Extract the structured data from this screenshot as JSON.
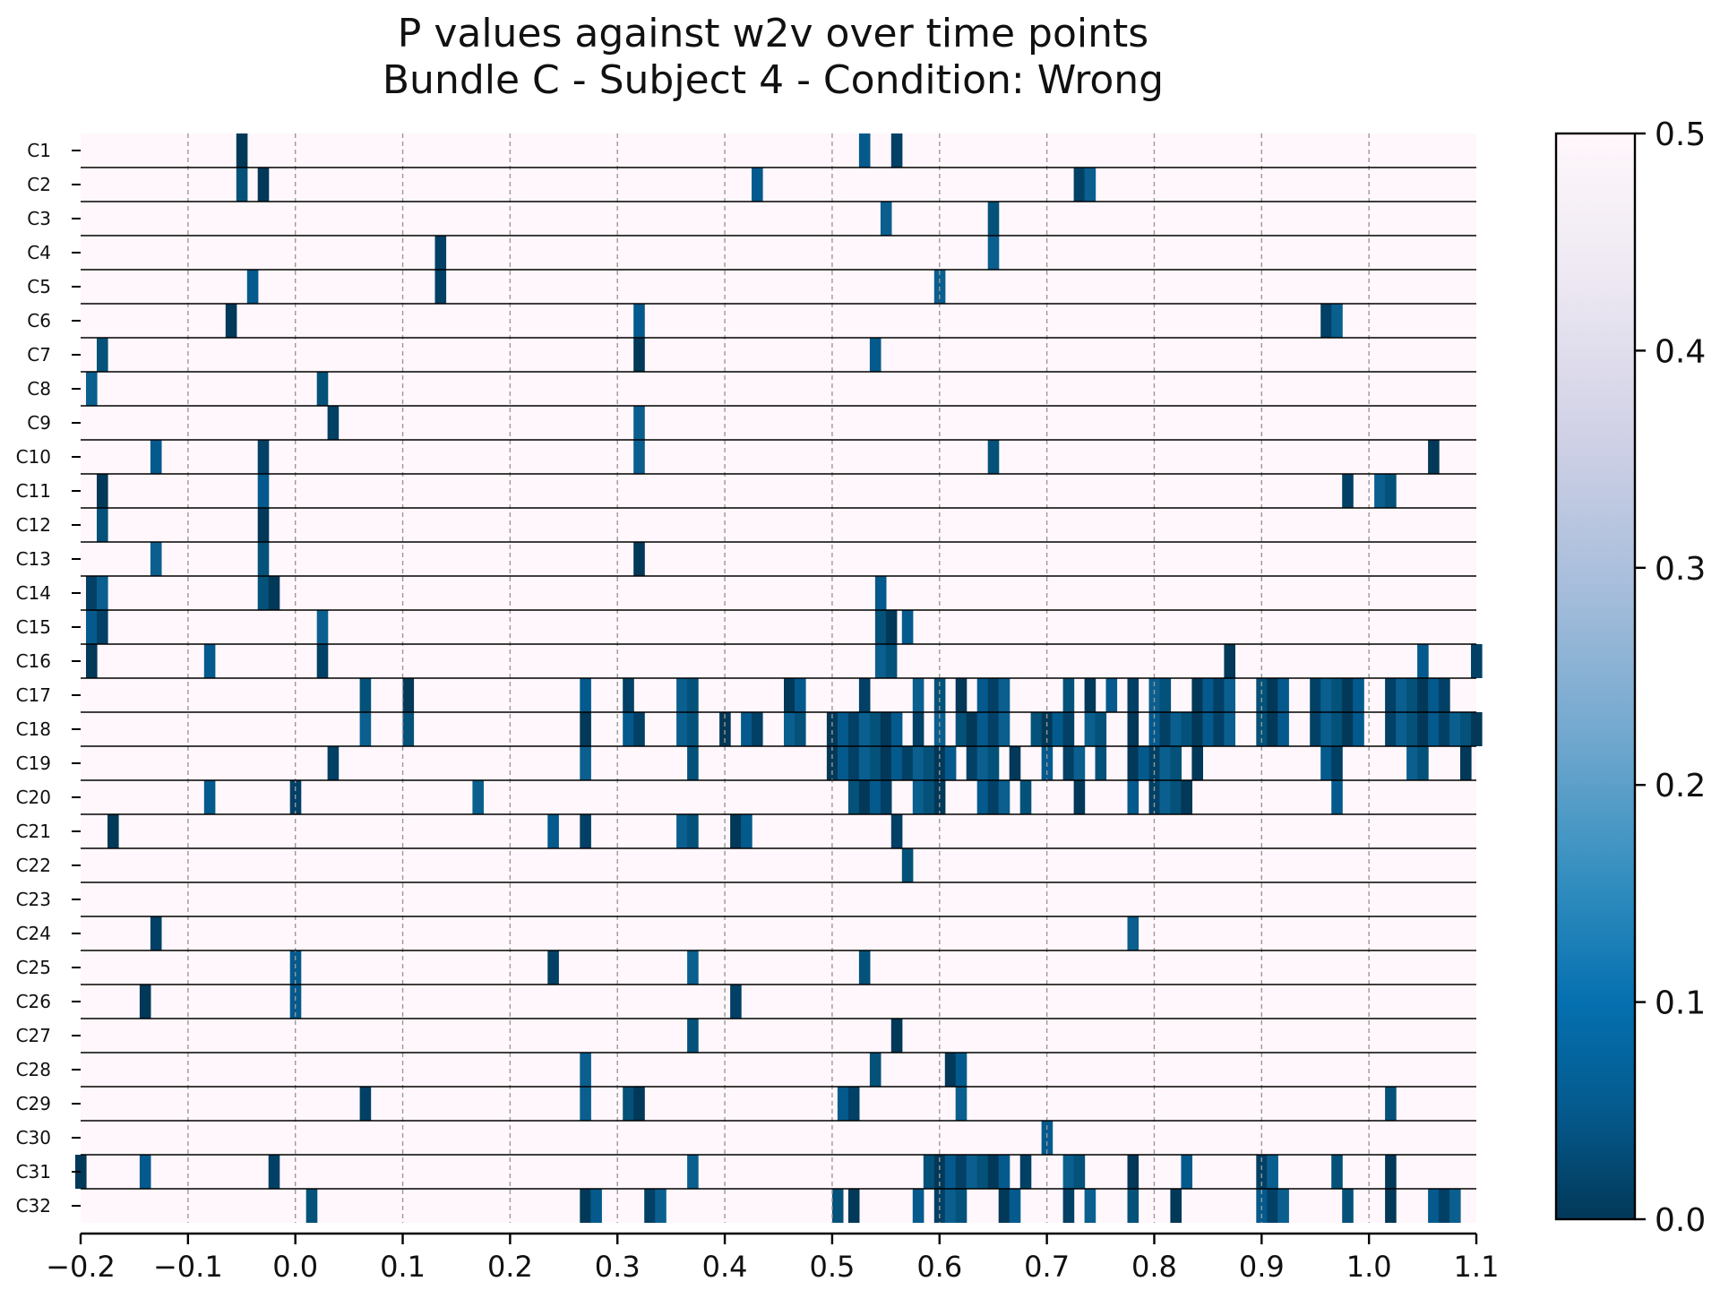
{
  "chart_data": {
    "type": "heatmap",
    "title": "P values against w2v over time points",
    "subtitle": "Bundle C - Subject 4 - Condition: Wrong",
    "xlabel": "",
    "ylabel": "",
    "xlim": [
      -0.2,
      1.1
    ],
    "x_ticks": [
      "−0.2",
      "−0.1",
      "0.0",
      "0.1",
      "0.2",
      "0.3",
      "0.4",
      "0.5",
      "0.6",
      "0.7",
      "0.8",
      "0.9",
      "1.0",
      "1.1"
    ],
    "x_tick_values": [
      -0.2,
      -0.1,
      0.0,
      0.1,
      0.2,
      0.3,
      0.4,
      0.5,
      0.6,
      0.7,
      0.8,
      0.9,
      1.0,
      1.1
    ],
    "channels": [
      "C1",
      "C2",
      "C3",
      "C4",
      "C5",
      "C6",
      "C7",
      "C8",
      "C9",
      "C10",
      "C11",
      "C12",
      "C13",
      "C14",
      "C15",
      "C16",
      "C17",
      "C18",
      "C19",
      "C20",
      "C21",
      "C22",
      "C23",
      "C24",
      "C25",
      "C26",
      "C27",
      "C28",
      "C29",
      "C30",
      "C31",
      "C32"
    ],
    "colorbar": {
      "min": 0.0,
      "max": 0.5,
      "ticks": [
        "0.0",
        "0.1",
        "0.2",
        "0.3",
        "0.4",
        "0.5"
      ],
      "colormap": "PuBu_r"
    },
    "background_value": 0.5,
    "vertical_gridlines": true,
    "colors": {
      "low": "#023858",
      "mid": "#0570b0",
      "high": "#fff7fb",
      "grid": "#999999"
    },
    "significant_cells": [
      {
        "ch": "C1",
        "t": [
          -0.05,
          0.53,
          0.56
        ]
      },
      {
        "ch": "C2",
        "t": [
          -0.05,
          -0.03,
          0.43,
          0.73,
          0.74
        ]
      },
      {
        "ch": "C3",
        "t": [
          0.55,
          0.65
        ]
      },
      {
        "ch": "C4",
        "t": [
          0.135,
          0.65
        ]
      },
      {
        "ch": "C5",
        "t": [
          -0.04,
          0.135,
          0.6
        ]
      },
      {
        "ch": "C6",
        "t": [
          -0.06,
          0.32,
          0.96,
          0.97
        ]
      },
      {
        "ch": "C7",
        "t": [
          -0.18,
          0.32,
          0.54
        ]
      },
      {
        "ch": "C8",
        "t": [
          -0.19,
          0.025
        ]
      },
      {
        "ch": "C9",
        "t": [
          0.035,
          0.32
        ]
      },
      {
        "ch": "C10",
        "t": [
          -0.13,
          -0.03,
          0.32,
          0.65,
          1.06
        ]
      },
      {
        "ch": "C11",
        "t": [
          -0.18,
          -0.03,
          0.98,
          1.01,
          1.02
        ]
      },
      {
        "ch": "C12",
        "t": [
          -0.18,
          -0.03
        ]
      },
      {
        "ch": "C13",
        "t": [
          -0.13,
          -0.03,
          0.32
        ]
      },
      {
        "ch": "C14",
        "t": [
          -0.19,
          -0.18,
          -0.03,
          -0.02,
          0.545
        ]
      },
      {
        "ch": "C15",
        "t": [
          -0.19,
          -0.18,
          0.025,
          0.545,
          0.555,
          0.57
        ]
      },
      {
        "ch": "C16",
        "t": [
          -0.19,
          -0.08,
          0.025,
          0.545,
          0.555,
          0.87,
          1.05,
          1.1
        ]
      },
      {
        "ch": "C17",
        "t": [
          0.065,
          0.105,
          0.27,
          0.31,
          0.36,
          0.37,
          0.46,
          0.47,
          0.53,
          0.58,
          0.6,
          0.62,
          0.64,
          0.65,
          0.66,
          0.72,
          0.74,
          0.76,
          0.78,
          0.8,
          0.81,
          0.84,
          0.85,
          0.86,
          0.87,
          0.9,
          0.91,
          0.92,
          0.95,
          0.96,
          0.97,
          0.98,
          0.99,
          1.02,
          1.03,
          1.04,
          1.05,
          1.06,
          1.07
        ]
      },
      {
        "ch": "C18",
        "t": [
          0.065,
          0.105,
          0.27,
          0.31,
          0.32,
          0.36,
          0.37,
          0.4,
          0.42,
          0.43,
          0.46,
          0.47,
          0.5,
          0.51,
          0.52,
          0.53,
          0.54,
          0.55,
          0.56,
          0.58,
          0.6,
          0.62,
          0.63,
          0.64,
          0.65,
          0.66,
          0.69,
          0.7,
          0.71,
          0.72,
          0.74,
          0.75,
          0.78,
          0.8,
          0.81,
          0.82,
          0.83,
          0.84,
          0.85,
          0.86,
          0.87,
          0.9,
          0.91,
          0.92,
          0.95,
          0.96,
          0.97,
          0.98,
          0.99,
          1.02,
          1.03,
          1.04,
          1.05,
          1.06,
          1.07,
          1.08,
          1.09,
          1.1
        ]
      },
      {
        "ch": "C19",
        "t": [
          0.035,
          0.27,
          0.37,
          0.5,
          0.51,
          0.52,
          0.53,
          0.54,
          0.55,
          0.56,
          0.57,
          0.58,
          0.59,
          0.6,
          0.61,
          0.63,
          0.64,
          0.65,
          0.67,
          0.7,
          0.72,
          0.73,
          0.75,
          0.78,
          0.79,
          0.8,
          0.81,
          0.82,
          0.84,
          0.96,
          0.97,
          1.04,
          1.05,
          1.09
        ]
      },
      {
        "ch": "C20",
        "t": [
          -0.08,
          0.0,
          0.17,
          0.52,
          0.53,
          0.54,
          0.55,
          0.58,
          0.59,
          0.6,
          0.64,
          0.65,
          0.66,
          0.68,
          0.73,
          0.78,
          0.8,
          0.81,
          0.82,
          0.83,
          0.97
        ]
      },
      {
        "ch": "C21",
        "t": [
          -0.17,
          0.24,
          0.27,
          0.36,
          0.37,
          0.41,
          0.42,
          0.56
        ]
      },
      {
        "ch": "C22",
        "t": [
          0.57
        ]
      },
      {
        "ch": "C23",
        "t": []
      },
      {
        "ch": "C24",
        "t": [
          -0.13,
          0.78
        ]
      },
      {
        "ch": "C25",
        "t": [
          0.0,
          0.24,
          0.37,
          0.53
        ]
      },
      {
        "ch": "C26",
        "t": [
          -0.14,
          0.0,
          0.41
        ]
      },
      {
        "ch": "C27",
        "t": [
          0.37,
          0.56
        ]
      },
      {
        "ch": "C28",
        "t": [
          0.27,
          0.54,
          0.61,
          0.62
        ]
      },
      {
        "ch": "C29",
        "t": [
          0.065,
          0.27,
          0.31,
          0.32,
          0.51,
          0.52,
          0.62,
          1.02
        ]
      },
      {
        "ch": "C30",
        "t": [
          0.7
        ]
      },
      {
        "ch": "C31",
        "t": [
          -0.2,
          -0.14,
          -0.02,
          0.37,
          0.59,
          0.6,
          0.61,
          0.62,
          0.63,
          0.64,
          0.65,
          0.66,
          0.68,
          0.72,
          0.73,
          0.78,
          0.83,
          0.9,
          0.91,
          0.97,
          1.02
        ]
      },
      {
        "ch": "C32",
        "t": [
          0.015,
          0.27,
          0.28,
          0.33,
          0.34,
          0.505,
          0.52,
          0.58,
          0.6,
          0.61,
          0.62,
          0.66,
          0.67,
          0.72,
          0.74,
          0.78,
          0.82,
          0.9,
          0.91,
          0.92,
          0.98,
          1.02,
          1.06,
          1.07,
          1.08
        ]
      }
    ]
  }
}
